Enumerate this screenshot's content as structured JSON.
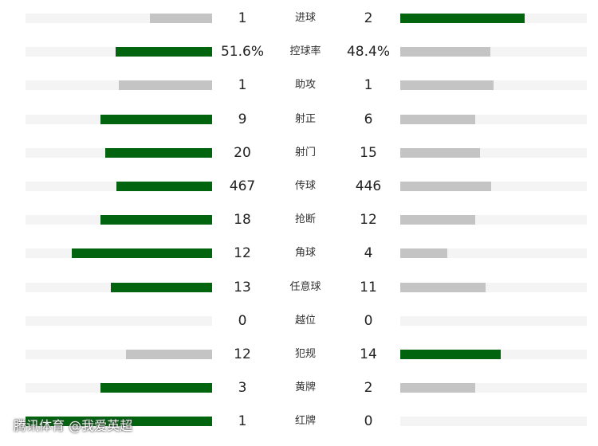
{
  "stats": [
    {
      "label": "进球",
      "home": "1",
      "away": "2",
      "home_fraction": 0.333,
      "away_fraction": 0.667,
      "leader": "away"
    },
    {
      "label": "控球率",
      "home": "51.6%",
      "away": "48.4%",
      "home_fraction": 0.516,
      "away_fraction": 0.484,
      "leader": "home"
    },
    {
      "label": "助攻",
      "home": "1",
      "away": "1",
      "home_fraction": 0.5,
      "away_fraction": 0.5,
      "leader": "none"
    },
    {
      "label": "射正",
      "home": "9",
      "away": "6",
      "home_fraction": 0.6,
      "away_fraction": 0.4,
      "leader": "home"
    },
    {
      "label": "射门",
      "home": "20",
      "away": "15",
      "home_fraction": 0.571,
      "away_fraction": 0.429,
      "leader": "home"
    },
    {
      "label": "传球",
      "home": "467",
      "away": "446",
      "home_fraction": 0.512,
      "away_fraction": 0.488,
      "leader": "home"
    },
    {
      "label": "抢断",
      "home": "18",
      "away": "12",
      "home_fraction": 0.6,
      "away_fraction": 0.4,
      "leader": "home"
    },
    {
      "label": "角球",
      "home": "12",
      "away": "4",
      "home_fraction": 0.75,
      "away_fraction": 0.25,
      "leader": "home"
    },
    {
      "label": "任意球",
      "home": "13",
      "away": "11",
      "home_fraction": 0.542,
      "away_fraction": 0.458,
      "leader": "home"
    },
    {
      "label": "越位",
      "home": "0",
      "away": "0",
      "home_fraction": 0,
      "away_fraction": 0,
      "leader": "none"
    },
    {
      "label": "犯规",
      "home": "12",
      "away": "14",
      "home_fraction": 0.462,
      "away_fraction": 0.538,
      "leader": "away"
    },
    {
      "label": "黄牌",
      "home": "3",
      "away": "2",
      "home_fraction": 0.6,
      "away_fraction": 0.4,
      "leader": "home"
    },
    {
      "label": "红牌",
      "home": "1",
      "away": "0",
      "home_fraction": 1.0,
      "away_fraction": 0,
      "leader": "home"
    }
  ],
  "colors": {
    "leader_bar": "#03640f",
    "other_bar": "#c4c4c4",
    "track": "#f4f4f4"
  },
  "watermark": "腾讯体育 @我爱英超"
}
